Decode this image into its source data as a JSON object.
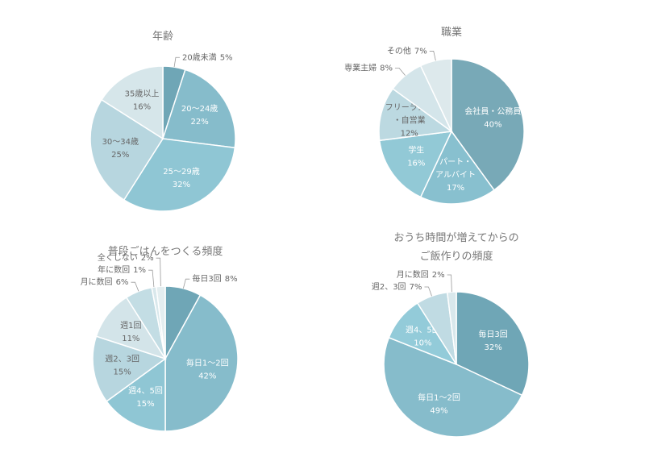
{
  "chart_data": [
    {
      "type": "pie",
      "title": "年齢",
      "categories": [
        "20歳未満",
        "20〜24歳",
        "25〜29歳",
        "30〜34歳",
        "35歳以上"
      ],
      "values": [
        5,
        22,
        32,
        25,
        16
      ],
      "value_labels": [
        "5%",
        "22%",
        "32%",
        "25%",
        "16%"
      ],
      "colors": [
        "#6fa6b6",
        "#86bccb",
        "#8fc6d4",
        "#b7d6df",
        "#d6e6ea"
      ]
    },
    {
      "type": "pie",
      "title": "職業",
      "categories": [
        "会社員・公務員",
        "パート・\nアルバイト",
        "学生",
        "フリーランス\n・自営業",
        "専業主婦",
        "その他"
      ],
      "values": [
        40,
        17,
        16,
        12,
        8,
        7
      ],
      "value_labels": [
        "40%",
        "17%",
        "16%",
        "12%",
        "8%",
        "7%"
      ],
      "colors": [
        "#78a9b7",
        "#88c0cf",
        "#92c9d6",
        "#bcd9e1",
        "#d4e5ea",
        "#dde9ec"
      ]
    },
    {
      "type": "pie",
      "title": "普段ごはんをつくる頻度",
      "categories": [
        "毎日3回",
        "毎日1〜2回",
        "週4、5回",
        "週2、3回",
        "週1回",
        "月に数回",
        "年に数回",
        "全くしない"
      ],
      "values": [
        8,
        42,
        15,
        15,
        11,
        6,
        1,
        2
      ],
      "value_labels": [
        "8%",
        "42%",
        "15%",
        "15%",
        "11%",
        "6%",
        "1%",
        "2%"
      ],
      "colors": [
        "#6fa6b6",
        "#86bccb",
        "#8fc6d4",
        "#b7d6df",
        "#d3e4e9",
        "#c3dde4",
        "#d9e8ec",
        "#e4eef0"
      ]
    },
    {
      "type": "pie",
      "title": "おうち時間が増えてからの\nご飯作りの頻度",
      "categories": [
        "毎日3回",
        "毎日1〜2回",
        "週4、5回",
        "週2、3回",
        "月に数回"
      ],
      "values": [
        32,
        49,
        10,
        7,
        2
      ],
      "value_labels": [
        "32%",
        "49%",
        "10%",
        "7%",
        "2%"
      ],
      "colors": [
        "#6fa6b6",
        "#86bccb",
        "#93cbd9",
        "#c0dbe3",
        "#d9e8ec"
      ]
    }
  ]
}
